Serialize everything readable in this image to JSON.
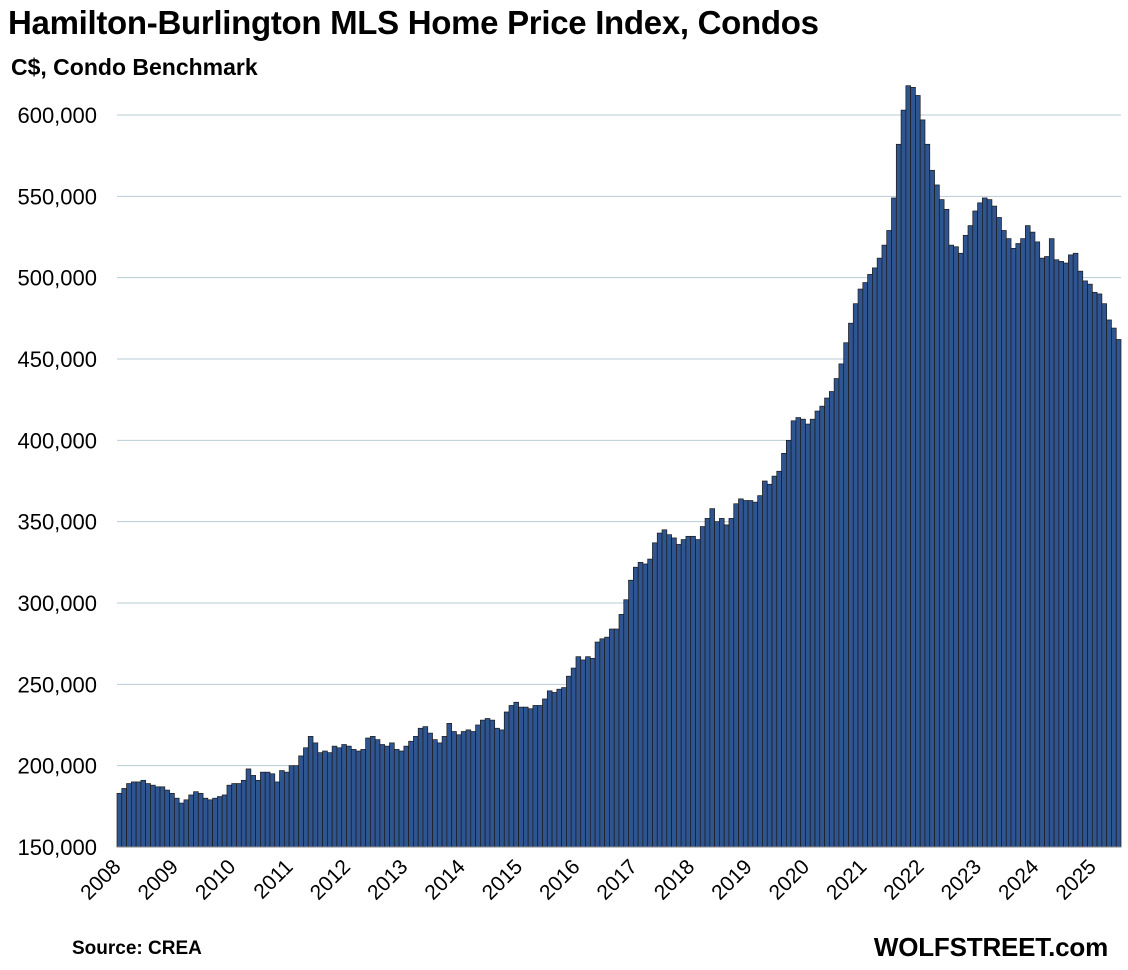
{
  "header": {
    "title": "Hamilton-Burlington MLS Home Price Index, Condos",
    "subtitle": "C$, Condo Benchmark"
  },
  "footer": {
    "source": "Source: CREA",
    "brand": "WOLFSTREET.com"
  },
  "colors": {
    "bar_fill": "#2f5591",
    "bar_stroke": "#1a1a1a",
    "gridline": "#b9cbd5"
  },
  "chart_data": {
    "type": "bar",
    "title": "Hamilton-Burlington MLS Home Price Index, Condos",
    "ylabel": "C$, Condo Benchmark",
    "xlabel": "",
    "ylim": [
      150000,
      620000
    ],
    "grid": true,
    "y_ticks": [
      150000,
      200000,
      250000,
      300000,
      350000,
      400000,
      450000,
      500000,
      550000,
      600000
    ],
    "y_tick_labels": [
      "150,000",
      "200,000",
      "250,000",
      "300,000",
      "350,000",
      "400,000",
      "450,000",
      "500,000",
      "550,000",
      "600,000"
    ],
    "x_tick_labels": [
      "2008",
      "2009",
      "2010",
      "2011",
      "2012",
      "2013",
      "2014",
      "2015",
      "2016",
      "2017",
      "2018",
      "2019",
      "2020",
      "2021",
      "2022",
      "2023",
      "2024",
      "2025"
    ],
    "start_month": "2008-01",
    "frequency": "monthly",
    "series": [
      {
        "values": [
          183000,
          186000,
          189000,
          190000,
          190000,
          191000,
          189000,
          188000,
          187000,
          187000,
          185000,
          183000,
          180000,
          177000,
          179000,
          182000,
          184000,
          183000,
          180000,
          179000,
          180000,
          181000,
          182000,
          188000,
          189000,
          189000,
          191000,
          198000,
          194000,
          191000,
          196000,
          196000,
          195000,
          190000,
          197000,
          196000,
          200000,
          200000,
          206000,
          211000,
          218000,
          214000,
          208000,
          209000,
          208000,
          212000,
          211000,
          213000,
          212000,
          210000,
          209000,
          210000,
          217000,
          218000,
          216000,
          213000,
          212000,
          214000,
          210000,
          209000,
          212000,
          215000,
          218000,
          223000,
          224000,
          220000,
          216000,
          214000,
          218000,
          226000,
          221000,
          219000,
          221000,
          222000,
          221000,
          225000,
          228000,
          229000,
          228000,
          223000,
          222000,
          233000,
          237000,
          239000,
          236000,
          236000,
          235000,
          237000,
          237000,
          241000,
          246000,
          245000,
          247000,
          248000,
          255000,
          260000,
          267000,
          265000,
          267000,
          266000,
          276000,
          278000,
          279000,
          284000,
          284000,
          293000,
          302000,
          314000,
          322000,
          325000,
          324000,
          327000,
          337000,
          343000,
          345000,
          342000,
          340000,
          336000,
          339000,
          341000,
          341000,
          339000,
          347000,
          352000,
          358000,
          350000,
          352000,
          348000,
          352000,
          361000,
          364000,
          363000,
          363000,
          362000,
          366000,
          375000,
          373000,
          378000,
          381000,
          392000,
          400000,
          412000,
          414000,
          413000,
          410000,
          413000,
          418000,
          421000,
          426000,
          430000,
          438000,
          447000,
          460000,
          472000,
          484000,
          493000,
          497000,
          502000,
          506000,
          512000,
          520000,
          529000,
          549000,
          582000,
          603000,
          618000,
          617000,
          612000,
          597000,
          582000,
          566000,
          557000,
          548000,
          542000,
          520000,
          519000,
          515000,
          526000,
          532000,
          541000,
          546000,
          549000,
          548000,
          544000,
          537000,
          529000,
          524000,
          518000,
          521000,
          524000,
          532000,
          528000,
          522000,
          512000,
          513000,
          524000,
          511000,
          510000,
          509000,
          514000,
          515000,
          504000,
          498000,
          496000,
          491000,
          490000,
          484000,
          474000,
          469000,
          462000
        ]
      }
    ]
  }
}
